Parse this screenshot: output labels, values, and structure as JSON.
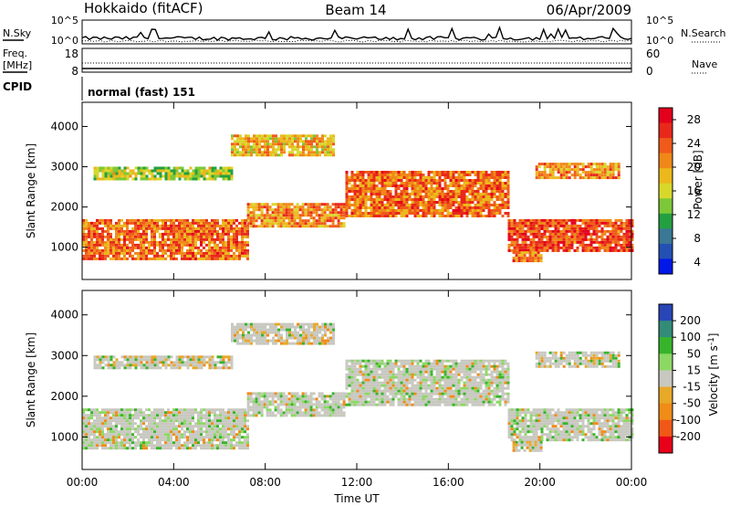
{
  "header": {
    "station": "Hokkaido (fitACF)",
    "beam": "Beam 14",
    "date": "06/Apr/2009"
  },
  "noise_panel": {
    "left_label": "N.Sky",
    "right_label": "N.Search",
    "ticks": [
      "10^5",
      "10^0"
    ]
  },
  "freq_panel": {
    "left_label_1": "Freq.",
    "left_label_2": "[MHz]",
    "left_ticks": [
      "18",
      "8"
    ],
    "right_label": "Nave",
    "right_ticks": [
      "60",
      "0"
    ]
  },
  "cpid_panel": {
    "label": "CPID",
    "value": "normal (fast) 151"
  },
  "chart_data": [
    {
      "type": "heatmap",
      "name": "power",
      "ylabel": "Slant Range [km]",
      "xlabel": "",
      "x_ticks": [
        "00:00",
        "04:00",
        "08:00",
        "12:00",
        "16:00",
        "20:00",
        "00:00"
      ],
      "y_ticks": [
        1000,
        2000,
        3000,
        4000
      ],
      "ylim": [
        200,
        4600
      ],
      "colorbar": {
        "label": "Power [dB]",
        "ticks": [
          4,
          8,
          12,
          16,
          20,
          24,
          28
        ],
        "colors": [
          "#0018e8",
          "#2450b4",
          "#3a7896",
          "#24a040",
          "#7cc838",
          "#d8d82c",
          "#ecb81c",
          "#f08818",
          "#f05a1a",
          "#e8281a",
          "#e4001c"
        ]
      },
      "echo_regions": [
        {
          "x": [
            0,
            7.2
          ],
          "y": [
            700,
            1700
          ],
          "power": 24
        },
        {
          "x": [
            7.2,
            11.5
          ],
          "y": [
            1500,
            2100
          ],
          "power": 22
        },
        {
          "x": [
            11.5,
            18.6
          ],
          "y": [
            1800,
            2900
          ],
          "power": 24
        },
        {
          "x": [
            18.6,
            24
          ],
          "y": [
            900,
            1700
          ],
          "power": 26
        },
        {
          "x": [
            0.5,
            6.5
          ],
          "y": [
            2700,
            3000
          ],
          "power": 16
        },
        {
          "x": [
            6.5,
            11
          ],
          "y": [
            3300,
            3800
          ],
          "power": 20
        },
        {
          "x": [
            19.8,
            23.5
          ],
          "y": [
            2700,
            3100
          ],
          "power": 22
        },
        {
          "x": [
            18.8,
            20
          ],
          "y": [
            650,
            900
          ],
          "power": 24
        }
      ]
    },
    {
      "type": "heatmap",
      "name": "velocity",
      "ylabel": "Slant Range [km]",
      "xlabel": "Time UT",
      "x_ticks": [
        "00:00",
        "04:00",
        "08:00",
        "12:00",
        "16:00",
        "20:00",
        "00:00"
      ],
      "y_ticks": [
        1000,
        2000,
        3000,
        4000
      ],
      "ylim": [
        200,
        4600
      ],
      "colorbar": {
        "label": "Velocity [m s",
        "label_sup": "-1",
        "label_end": "]",
        "ticks": [
          "200",
          "100",
          "50",
          "15",
          "-15",
          "-50",
          "-100",
          "-200"
        ],
        "colors": [
          "#2846b8",
          "#328c78",
          "#38b42c",
          "#8cd864",
          "#c8c8c0",
          "#e8a828",
          "#f08c18",
          "#f05818",
          "#e8001a"
        ]
      },
      "echo_regions": [
        {
          "x": [
            0,
            7.2
          ],
          "y": [
            700,
            1700
          ],
          "velocity": 0
        },
        {
          "x": [
            7.2,
            11.5
          ],
          "y": [
            1500,
            2100
          ],
          "velocity": 0
        },
        {
          "x": [
            11.5,
            18.6
          ],
          "y": [
            1800,
            2900
          ],
          "velocity": 0
        },
        {
          "x": [
            18.6,
            24
          ],
          "y": [
            900,
            1700
          ],
          "velocity": 0
        },
        {
          "x": [
            0.5,
            6.5
          ],
          "y": [
            2700,
            3000
          ],
          "velocity": -40
        },
        {
          "x": [
            6.5,
            11
          ],
          "y": [
            3300,
            3800
          ],
          "velocity": -40
        },
        {
          "x": [
            19.8,
            23.5
          ],
          "y": [
            2700,
            3100
          ],
          "velocity": -40
        },
        {
          "x": [
            18.8,
            20
          ],
          "y": [
            650,
            900
          ],
          "velocity": -60
        }
      ]
    }
  ]
}
